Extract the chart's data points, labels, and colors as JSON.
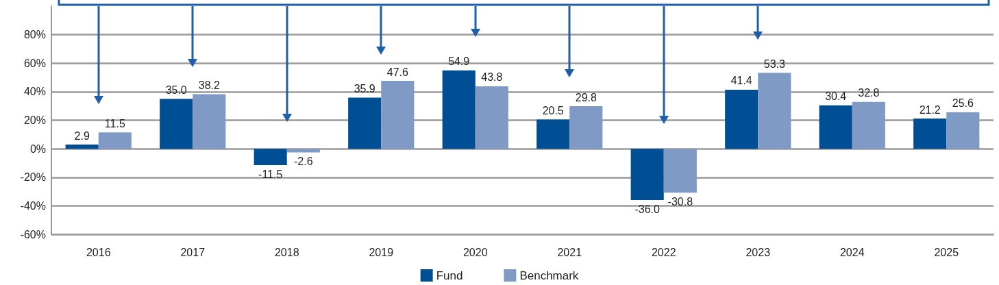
{
  "chart_data": {
    "type": "bar",
    "categories": [
      "2016",
      "2017",
      "2018",
      "2019",
      "2020",
      "2021",
      "2022",
      "2023",
      "2024",
      "2025"
    ],
    "series": [
      {
        "name": "Fund",
        "color": "#004f95",
        "values": [
          2.9,
          35.0,
          -11.5,
          35.9,
          54.9,
          20.5,
          -36.0,
          41.4,
          30.4,
          21.2
        ],
        "value_labels": [
          "2.9",
          "35.0",
          "-11.5",
          "35.9",
          "54.9",
          "20.5",
          "-36.0",
          "41.4",
          "30.4",
          "21.2"
        ]
      },
      {
        "name": "Benchmark",
        "color": "#7f9bc5",
        "values": [
          11.5,
          38.2,
          -2.6,
          47.6,
          43.8,
          29.8,
          -30.8,
          53.3,
          32.8,
          25.6
        ],
        "value_labels": [
          "11.5",
          "38.2",
          "-2.6",
          "47.6",
          "43.8",
          "29.8",
          "-30.8",
          "53.3",
          "32.8",
          "25.6"
        ]
      }
    ],
    "ylim": [
      -60,
      100
    ],
    "yticks": [
      {
        "value": -60,
        "label": "-60%"
      },
      {
        "value": -40,
        "label": "-40%"
      },
      {
        "value": -20,
        "label": "-20%"
      },
      {
        "value": 0,
        "label": "0%"
      },
      {
        "value": 20,
        "label": "20%"
      },
      {
        "value": 40,
        "label": "40%"
      },
      {
        "value": 60,
        "label": "60%"
      },
      {
        "value": 80,
        "label": "80%"
      }
    ],
    "grid": "y",
    "legend": "bottom"
  }
}
